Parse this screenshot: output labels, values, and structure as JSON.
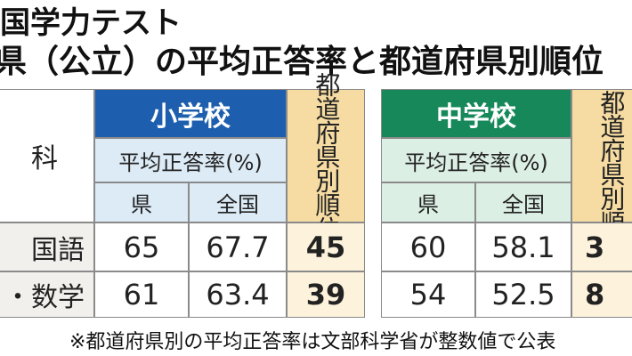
{
  "header": {
    "title": "国学力テスト",
    "subtitle": "県（公立）の平均正答率と都道府県別順位"
  },
  "table": {
    "subject_header": "科",
    "subjects": [
      "国語",
      "・数学"
    ],
    "elementary": {
      "name": "小学校",
      "rate_header": "平均正答率(%)",
      "prefecture_header": "県",
      "national_header": "全国",
      "rank_header": "都道府県別順位",
      "rows": [
        [
          65,
          67.7,
          45
        ],
        [
          61,
          63.4,
          39
        ]
      ]
    },
    "junior": {
      "name": "中学校",
      "rate_header": "平均正答率(%)",
      "prefecture_header": "県",
      "national_header": "全国",
      "rank_header": "都道府県別順位",
      "rows": [
        [
          60,
          58.1,
          3
        ],
        [
          54,
          52.5,
          8
        ]
      ]
    }
  },
  "footnote": "※都道府県別の平均正答率は文部科学省が整数値で公表"
}
